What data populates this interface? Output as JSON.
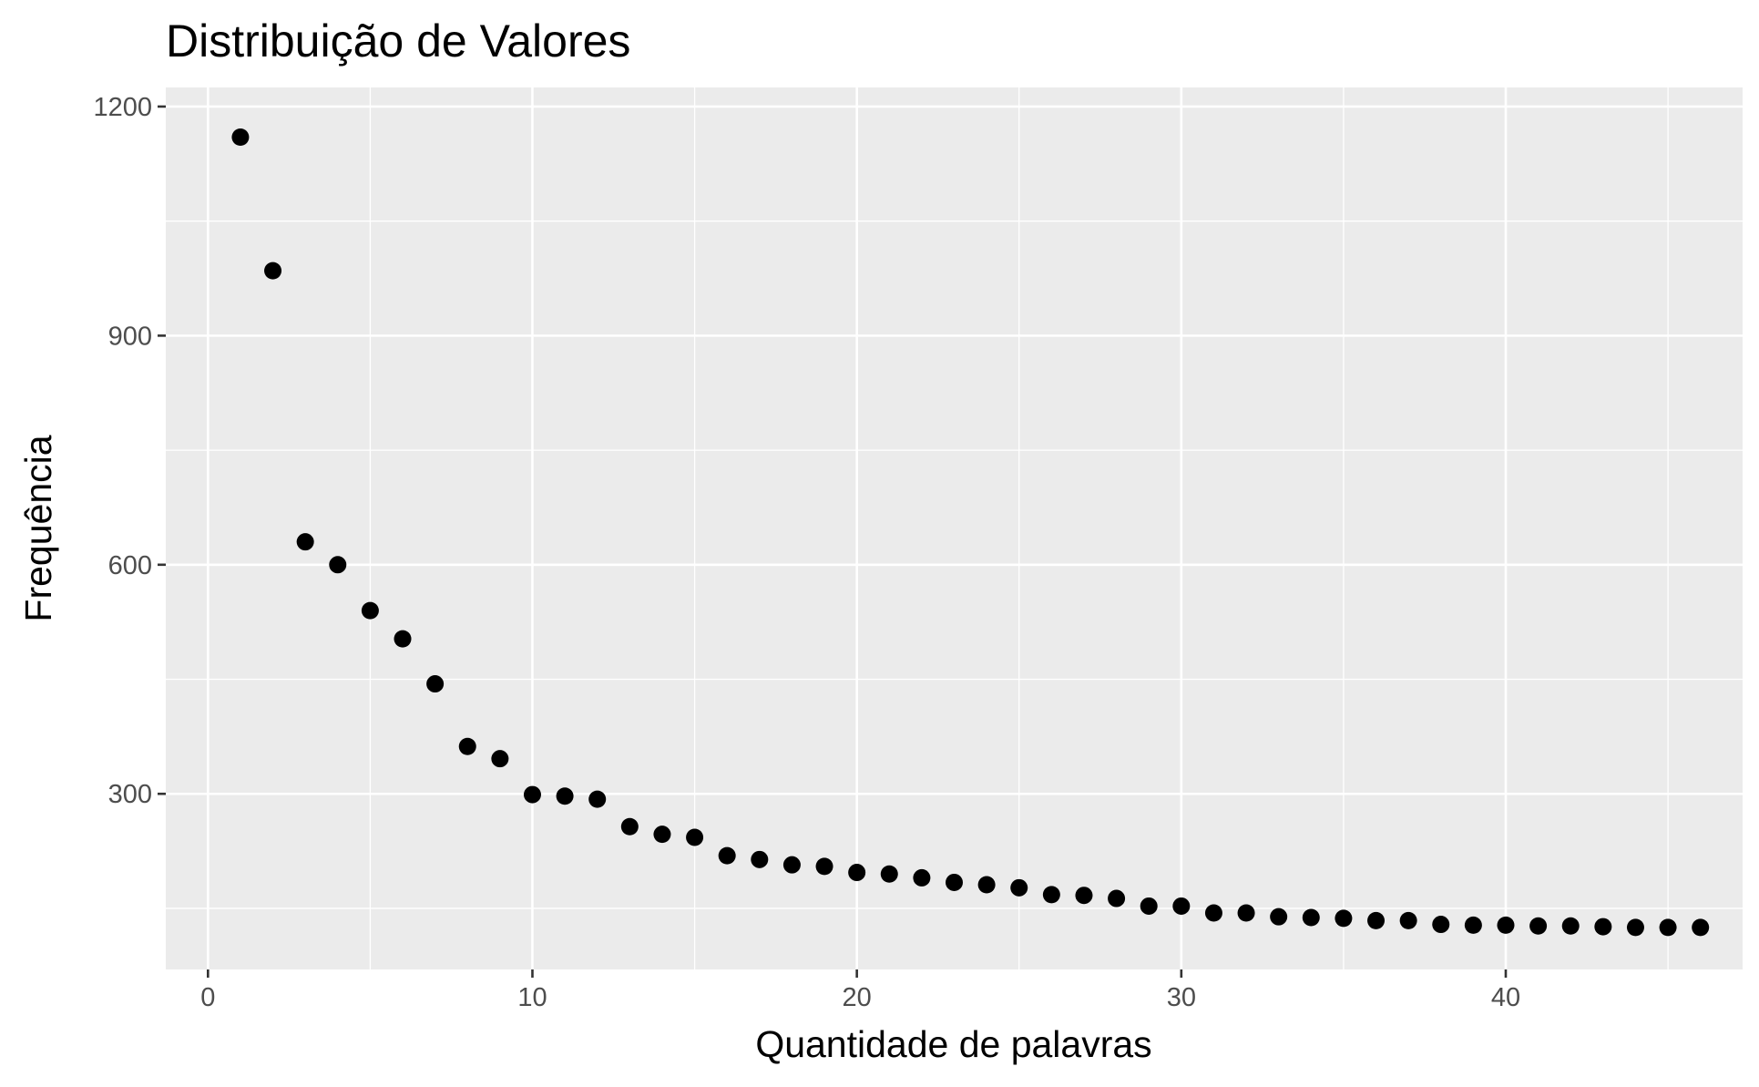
{
  "chart_data": {
    "type": "scatter",
    "title": "Distribuição de Valores",
    "xlabel": "Quantidade de palavras",
    "ylabel": "Frequência",
    "xlim": [
      -1.3,
      47.3
    ],
    "ylim": [
      70,
      1225
    ],
    "x_ticks": [
      0,
      10,
      20,
      30,
      40
    ],
    "x_tick_labels": [
      "0",
      "10",
      "20",
      "30",
      "40"
    ],
    "y_ticks": [
      300,
      600,
      900,
      1200
    ],
    "y_tick_labels": [
      "300",
      "600",
      "900",
      "1200"
    ],
    "grid": true,
    "legend": "none",
    "series": [
      {
        "x": [
          1,
          2,
          3,
          4,
          5,
          6,
          7,
          8,
          9,
          10,
          11,
          12,
          13,
          14,
          15,
          16,
          17,
          18,
          19,
          20,
          21,
          22,
          23,
          24,
          25,
          26,
          27,
          28,
          29,
          30,
          31,
          32,
          33,
          34,
          35,
          36,
          37,
          38,
          39,
          40,
          41,
          42,
          43,
          44,
          45,
          46
        ],
        "y": [
          1160,
          985,
          630,
          600,
          540,
          503,
          444,
          362,
          346,
          299,
          297,
          293,
          257,
          247,
          243,
          219,
          214,
          207,
          205,
          197,
          195,
          190,
          184,
          181,
          177,
          168,
          167,
          163,
          153,
          153,
          144,
          144,
          139,
          138,
          137,
          134,
          134,
          129,
          128,
          128,
          127,
          127,
          126,
          125,
          125,
          125
        ]
      }
    ]
  },
  "colors": {
    "panel_background": "#ebebeb",
    "grid": "#ffffff",
    "point": "#000000",
    "tick_label": "#4d4d4d",
    "text": "#000000"
  }
}
